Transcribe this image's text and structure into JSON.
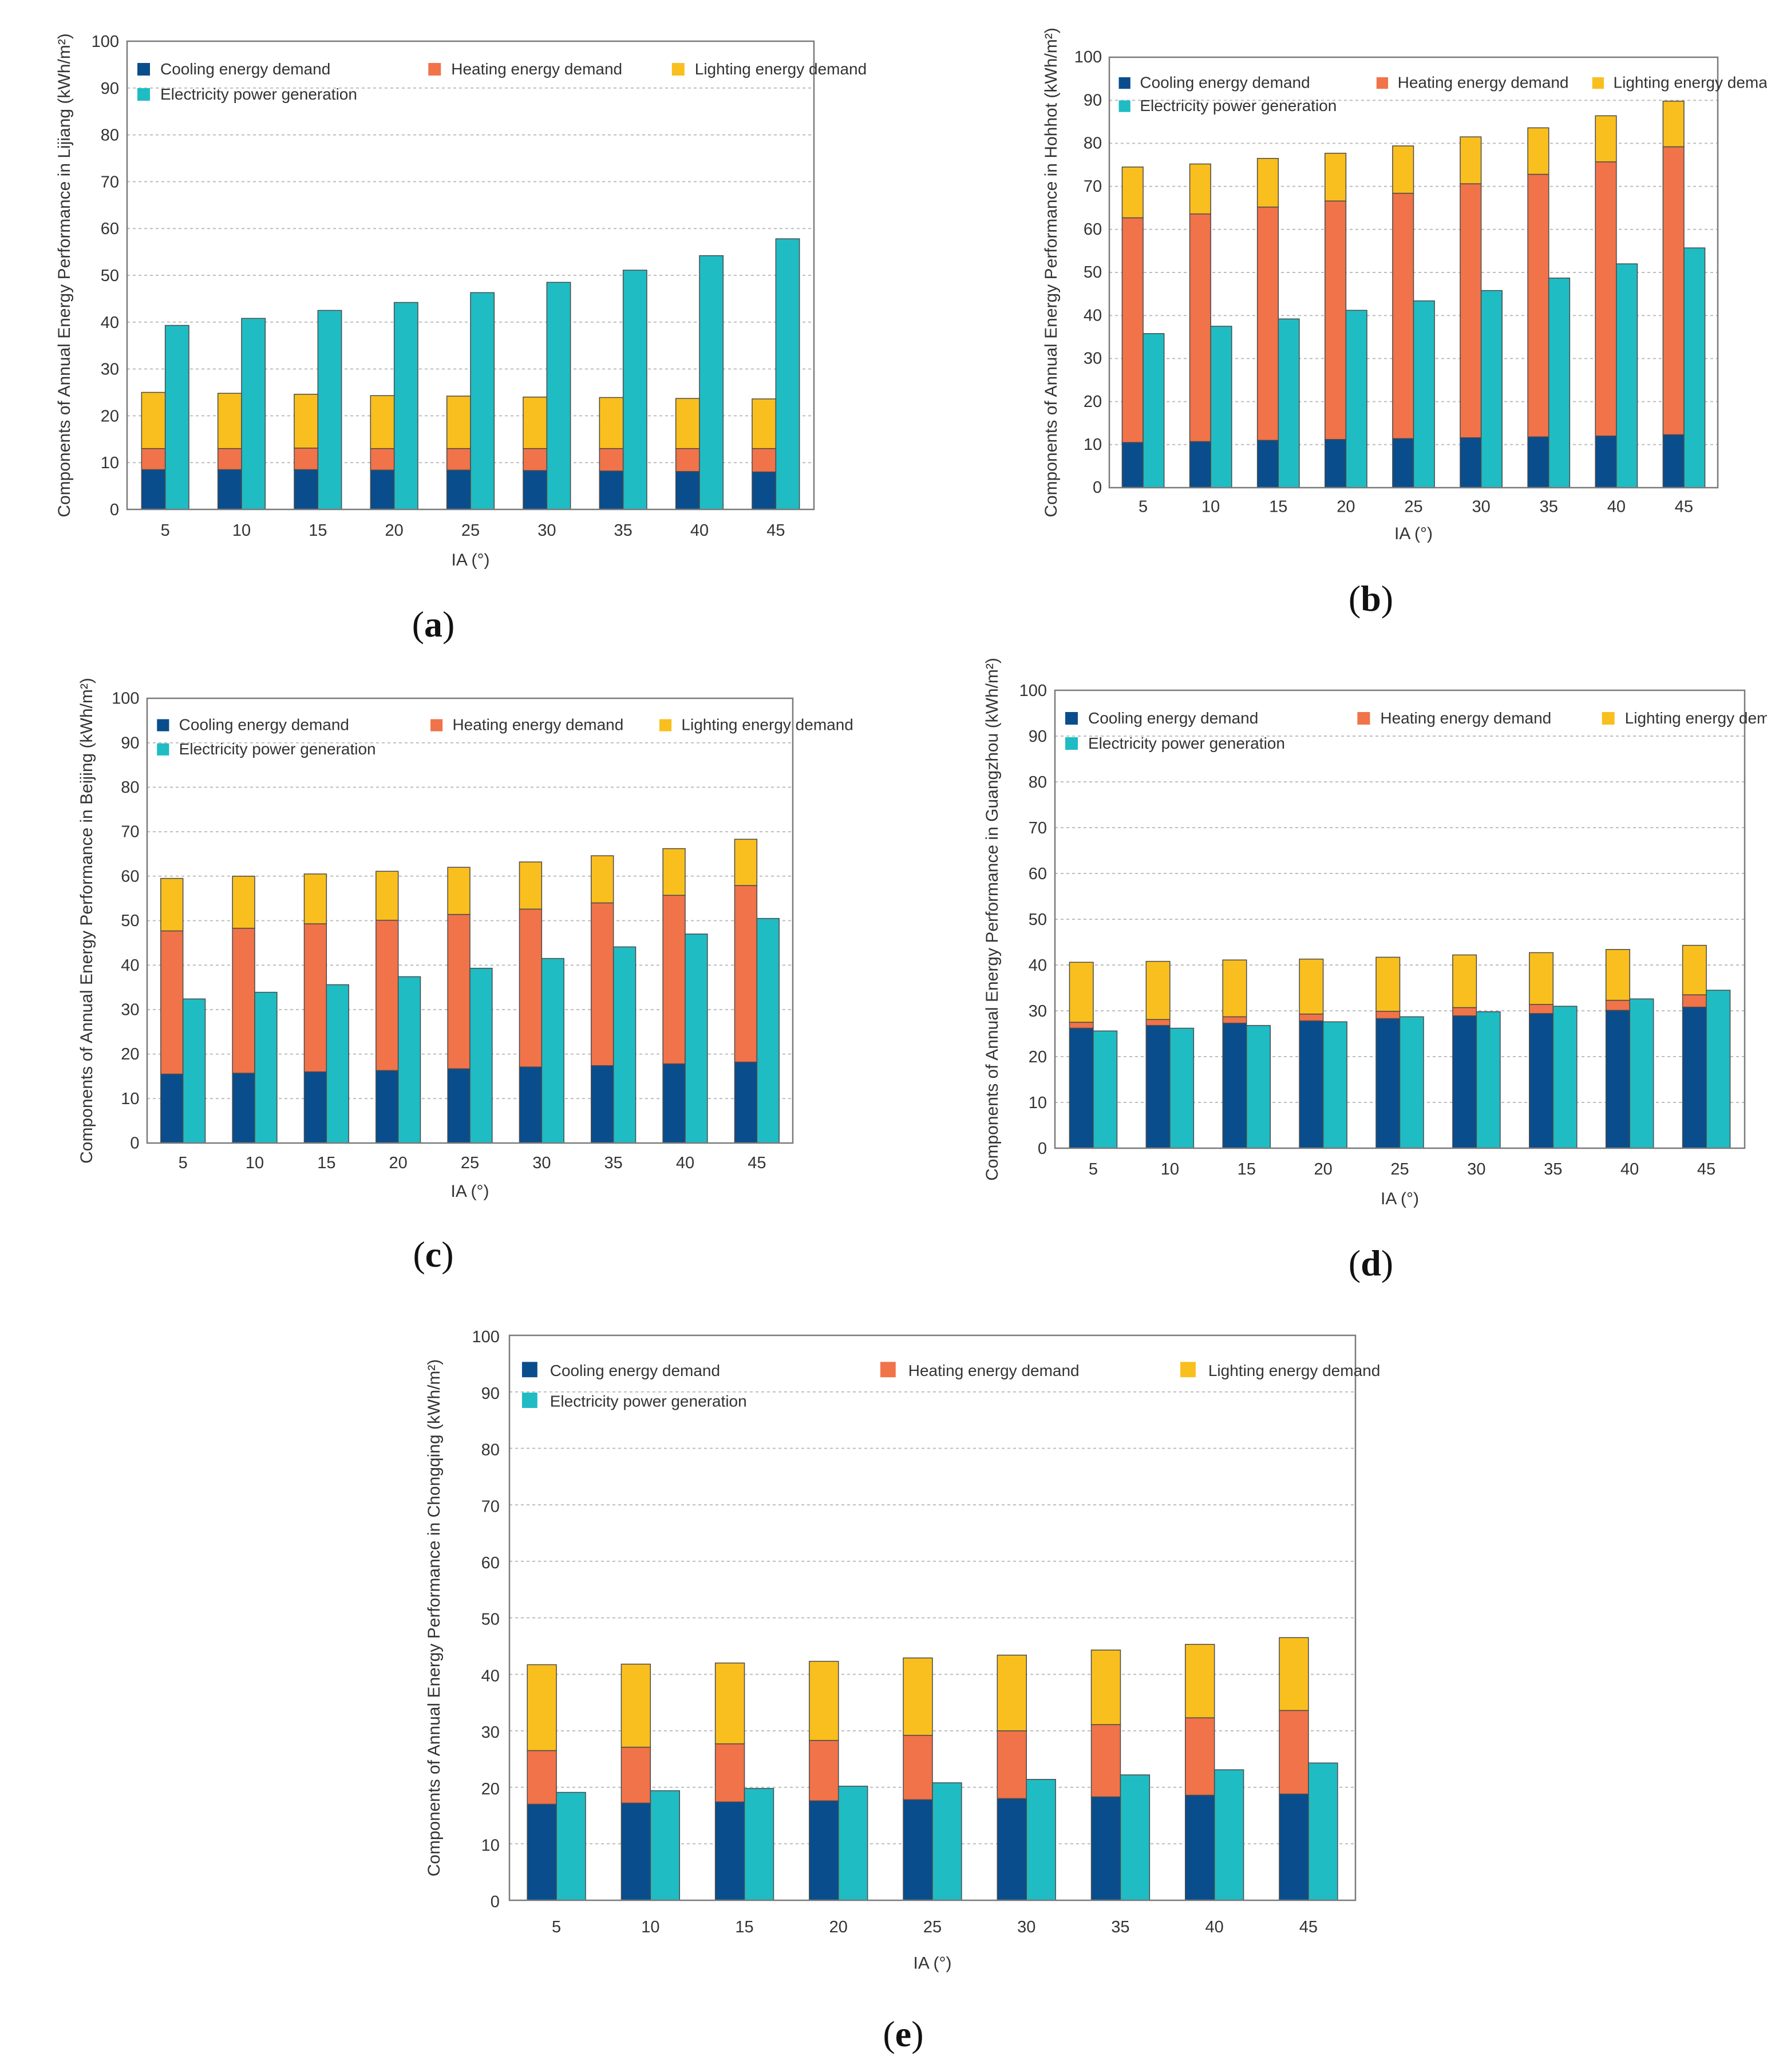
{
  "chart_data": [
    {
      "type": "bar",
      "panel": "(a)",
      "panel_letter": "a",
      "city": "Lijiang",
      "title": "",
      "xlabel": "IA (°)",
      "ylabel": "Components of Annual Energy Performance in Lijiang (kWh/m²)",
      "ylim": [
        0,
        100
      ],
      "yticks": [
        "0",
        "10",
        "20",
        "30",
        "40",
        "50",
        "60",
        "70",
        "80",
        "90",
        "100"
      ],
      "grid": true,
      "legend_position": "top-left",
      "categories": [
        "5",
        "10",
        "15",
        "20",
        "25",
        "30",
        "35",
        "40",
        "45"
      ],
      "series": [
        {
          "name": "Cooling energy demand",
          "stack": "demand",
          "values": [
            8.5,
            8.5,
            8.5,
            8.4,
            8.4,
            8.3,
            8.2,
            8.1,
            8.0
          ]
        },
        {
          "name": "Heating energy demand",
          "stack": "demand",
          "values": [
            4.5,
            4.5,
            4.6,
            4.6,
            4.6,
            4.7,
            4.8,
            4.9,
            5.0
          ]
        },
        {
          "name": "Lighting energy demand",
          "stack": "demand",
          "values": [
            12.0,
            11.8,
            11.5,
            11.3,
            11.2,
            11.0,
            10.9,
            10.7,
            10.6
          ]
        },
        {
          "name": "Electricity power generation",
          "stack": "generation",
          "values": [
            39.3,
            40.8,
            42.5,
            44.2,
            46.3,
            48.5,
            51.1,
            54.2,
            57.8
          ]
        }
      ]
    },
    {
      "type": "bar",
      "panel": "(b)",
      "panel_letter": "b",
      "city": "Hohhot",
      "title": "",
      "xlabel": "IA (°)",
      "ylabel": "Components of Annual Energy Performance in Hohhot (kWh/m²)",
      "ylim": [
        0,
        100
      ],
      "yticks": [
        "0",
        "10",
        "20",
        "30",
        "40",
        "50",
        "60",
        "70",
        "80",
        "90",
        "100"
      ],
      "grid": true,
      "legend_position": "top-left",
      "categories": [
        "5",
        "10",
        "15",
        "20",
        "25",
        "30",
        "35",
        "40",
        "45"
      ],
      "series": [
        {
          "name": "Cooling energy demand",
          "stack": "demand",
          "values": [
            10.5,
            10.7,
            11.0,
            11.2,
            11.4,
            11.6,
            11.8,
            12.0,
            12.3
          ]
        },
        {
          "name": "Heating energy demand",
          "stack": "demand",
          "values": [
            52.2,
            52.9,
            54.2,
            55.4,
            57.0,
            59.0,
            61.0,
            63.7,
            66.9
          ]
        },
        {
          "name": "Lighting energy demand",
          "stack": "demand",
          "values": [
            11.8,
            11.6,
            11.3,
            11.1,
            11.0,
            10.9,
            10.8,
            10.7,
            10.6
          ]
        },
        {
          "name": "Electricity power generation",
          "stack": "generation",
          "values": [
            35.8,
            37.5,
            39.2,
            41.2,
            43.4,
            45.8,
            48.7,
            52.0,
            55.7
          ]
        }
      ]
    },
    {
      "type": "bar",
      "panel": "(c)",
      "panel_letter": "c",
      "city": "Beijing",
      "title": "",
      "xlabel": "IA (°)",
      "ylabel": "Components of Annual Energy Performance in Beijing (kWh/m²)",
      "ylim": [
        0,
        100
      ],
      "yticks": [
        "0",
        "10",
        "20",
        "30",
        "40",
        "50",
        "60",
        "70",
        "80",
        "90",
        "100"
      ],
      "grid": true,
      "legend_position": "top-left",
      "categories": [
        "5",
        "10",
        "15",
        "20",
        "25",
        "30",
        "35",
        "40",
        "45"
      ],
      "series": [
        {
          "name": "Cooling energy demand",
          "stack": "demand",
          "values": [
            15.5,
            15.7,
            16.0,
            16.3,
            16.7,
            17.1,
            17.4,
            17.8,
            18.2
          ]
        },
        {
          "name": "Heating energy demand",
          "stack": "demand",
          "values": [
            32.2,
            32.6,
            33.3,
            33.8,
            34.7,
            35.5,
            36.6,
            37.9,
            39.7
          ]
        },
        {
          "name": "Lighting energy demand",
          "stack": "demand",
          "values": [
            11.8,
            11.7,
            11.2,
            11.0,
            10.6,
            10.6,
            10.6,
            10.5,
            10.4
          ]
        },
        {
          "name": "Electricity power generation",
          "stack": "generation",
          "values": [
            32.4,
            33.9,
            35.6,
            37.4,
            39.3,
            41.5,
            44.1,
            47.0,
            50.5
          ]
        }
      ]
    },
    {
      "type": "bar",
      "panel": "(d)",
      "panel_letter": "d",
      "city": "Guangzhou",
      "title": "",
      "xlabel": "IA (°)",
      "ylabel": "Components of Annual Energy Performance in Guangzhou (kWh/m²)",
      "ylim": [
        0,
        100
      ],
      "yticks": [
        "0",
        "10",
        "20",
        "30",
        "40",
        "50",
        "60",
        "70",
        "80",
        "90",
        "100"
      ],
      "grid": true,
      "legend_position": "top-left",
      "categories": [
        "5",
        "10",
        "15",
        "20",
        "25",
        "30",
        "35",
        "40",
        "45"
      ],
      "series": [
        {
          "name": "Cooling energy demand",
          "stack": "demand",
          "values": [
            26.2,
            26.8,
            27.3,
            27.8,
            28.3,
            28.9,
            29.4,
            30.1,
            30.8
          ]
        },
        {
          "name": "Heating energy demand",
          "stack": "demand",
          "values": [
            1.3,
            1.3,
            1.4,
            1.5,
            1.6,
            1.8,
            2.0,
            2.2,
            2.7
          ]
        },
        {
          "name": "Lighting energy demand",
          "stack": "demand",
          "values": [
            13.1,
            12.7,
            12.4,
            12.0,
            11.8,
            11.5,
            11.3,
            11.1,
            10.8
          ]
        },
        {
          "name": "Electricity power generation",
          "stack": "generation",
          "values": [
            25.6,
            26.2,
            26.8,
            27.6,
            28.7,
            29.8,
            31.0,
            32.6,
            34.5
          ]
        }
      ]
    },
    {
      "type": "bar",
      "panel": "(e)",
      "panel_letter": "e",
      "city": "Chongqing",
      "title": "",
      "xlabel": "IA (°)",
      "ylabel": "Components of Annual Energy Performance in Chongqing (kWh/m²)",
      "ylim": [
        0,
        100
      ],
      "yticks": [
        "0",
        "10",
        "20",
        "30",
        "40",
        "50",
        "60",
        "70",
        "80",
        "90",
        "100"
      ],
      "grid": true,
      "legend_position": "top-left",
      "categories": [
        "5",
        "10",
        "15",
        "20",
        "25",
        "30",
        "35",
        "40",
        "45"
      ],
      "series": [
        {
          "name": "Cooling energy demand",
          "stack": "demand",
          "values": [
            17.0,
            17.2,
            17.4,
            17.6,
            17.8,
            18.0,
            18.3,
            18.6,
            18.8
          ]
        },
        {
          "name": "Heating energy demand",
          "stack": "demand",
          "values": [
            9.5,
            9.9,
            10.3,
            10.7,
            11.4,
            12.0,
            12.8,
            13.7,
            14.8
          ]
        },
        {
          "name": "Lighting energy demand",
          "stack": "demand",
          "values": [
            15.2,
            14.7,
            14.3,
            14.0,
            13.7,
            13.4,
            13.2,
            13.0,
            12.9
          ]
        },
        {
          "name": "Electricity power generation",
          "stack": "generation",
          "values": [
            19.1,
            19.4,
            19.8,
            20.2,
            20.8,
            21.4,
            22.2,
            23.1,
            24.3
          ]
        }
      ]
    }
  ],
  "colors": {
    "Cooling energy demand": "#0a4d8c",
    "Heating energy demand": "#f0734a",
    "Lighting energy demand": "#f9bf1e",
    "Electricity power generation": "#1fbcc4"
  }
}
